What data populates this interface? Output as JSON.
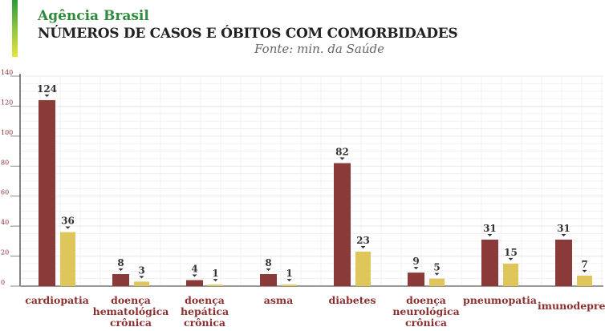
{
  "header": {
    "brand": "Agência Brasil",
    "title": "NÚMEROS DE CASOS E ÓBITOS COM COMORBIDADES",
    "source": "Fonte: min. da Saúde"
  },
  "colors": {
    "cases": "#8b3a3a",
    "deaths": "#dfc65a",
    "labels": "#8b2f2f",
    "brand": "#2e8b3c"
  },
  "chart_data": {
    "type": "bar",
    "categories": [
      "cardiopatia",
      "doença hematológica crônica",
      "doença hepática crônica",
      "asma",
      "diabetes",
      "doença neurológica crônica",
      "pneumopatia",
      "imunodepressão"
    ],
    "category_lines": [
      [
        "cardiopatia"
      ],
      [
        "doença",
        "hematológica",
        "crônica"
      ],
      [
        "doença",
        "hepática",
        "crônica"
      ],
      [
        "asma"
      ],
      [
        "diabetes"
      ],
      [
        "doença",
        "neurológica",
        "crônica"
      ],
      [
        "pneumopatia"
      ],
      [
        "imunodepressão"
      ]
    ],
    "series": [
      {
        "values": [
          124,
          8,
          4,
          8,
          82,
          9,
          31,
          31
        ]
      },
      {
        "values": [
          36,
          3,
          1,
          1,
          23,
          5,
          15,
          7
        ]
      }
    ],
    "yticks": [
      0,
      20,
      40,
      60,
      80,
      100,
      120,
      140
    ],
    "ylim": [
      0,
      140
    ],
    "grid": true,
    "title": "NÚMEROS DE CASOS E ÓBITOS COM COMORBIDADES"
  }
}
